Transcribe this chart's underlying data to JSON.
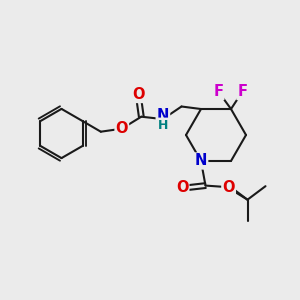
{
  "bg_color": "#ebebeb",
  "bond_color": "#1a1a1a",
  "bond_width": 1.5,
  "atom_colors": {
    "O": "#dd0000",
    "N": "#0000cc",
    "F": "#cc00cc",
    "H": "#008080",
    "C": "#1a1a1a"
  },
  "font_size_atom": 10.5,
  "font_size_H": 9.0
}
